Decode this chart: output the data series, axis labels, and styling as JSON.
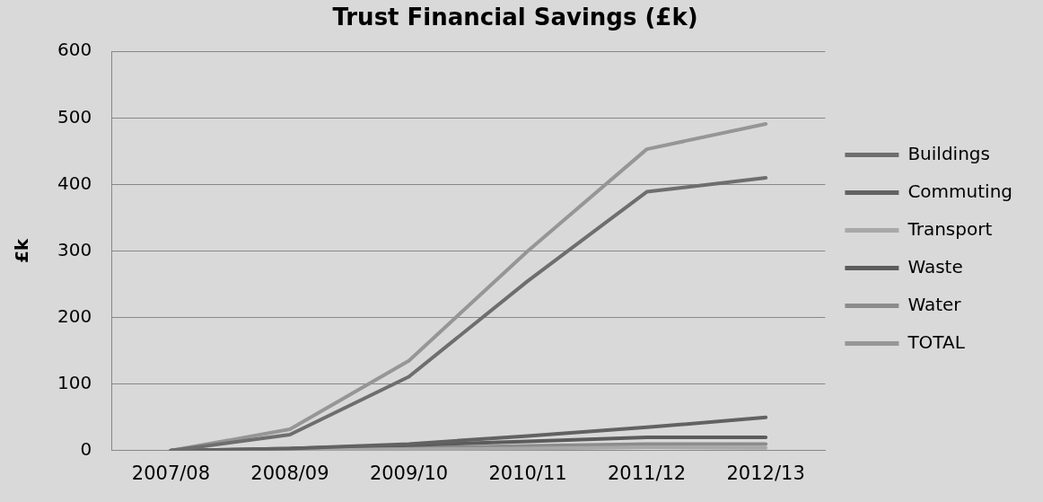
{
  "chart_data": {
    "type": "line",
    "title": "Trust Financial Savings (£k)",
    "ylabel": "£k",
    "categories": [
      "2007/08",
      "2008/09",
      "2009/10",
      "2010/11",
      "2011/12",
      "2012/13"
    ],
    "series": [
      {
        "name": "Buildings",
        "color": "#6e6e6e",
        "values": [
          0,
          24,
          111,
          255,
          389,
          410
        ]
      },
      {
        "name": "Commuting",
        "color": "#626262",
        "values": [
          0,
          3,
          10,
          22,
          35,
          50
        ]
      },
      {
        "name": "Transport",
        "color": "#a8a8a8",
        "values": [
          0,
          1,
          2,
          3,
          5,
          4
        ]
      },
      {
        "name": "Waste",
        "color": "#5c5c5c",
        "values": [
          0,
          3,
          8,
          14,
          20,
          20
        ]
      },
      {
        "name": "Water",
        "color": "#8c8c8c",
        "values": [
          0,
          1,
          4,
          7,
          10,
          10
        ]
      },
      {
        "name": "TOTAL",
        "color": "#969696",
        "values": [
          0,
          32,
          135,
          300,
          453,
          491
        ]
      }
    ],
    "ylim": [
      0,
      600
    ],
    "yticks": [
      0,
      100,
      200,
      300,
      400,
      500,
      600
    ],
    "grid": "y",
    "legend": "right",
    "marker": "none",
    "line_style": "solid"
  }
}
